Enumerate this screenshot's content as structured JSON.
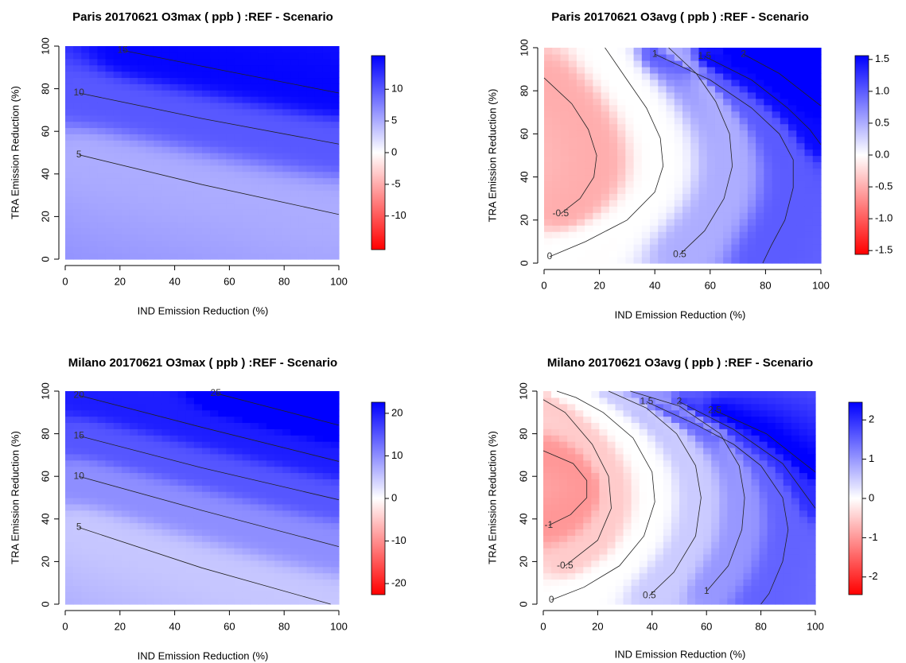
{
  "chart_data": [
    {
      "type": "contour",
      "title": "Paris 20170621 O3max ( ppb ) :REF - Scenario",
      "x_label": "IND Emission Reduction (%)",
      "y_label": "TRA Emission Reduction (%)",
      "xlim": [
        0,
        100
      ],
      "ylim": [
        0,
        100
      ],
      "xticks": [
        0,
        20,
        40,
        60,
        80,
        100
      ],
      "yticks": [
        0,
        20,
        40,
        60,
        80,
        100
      ],
      "zlim": [
        -15.3,
        15.3
      ],
      "zticks": [
        10,
        5,
        0,
        -5,
        -10
      ],
      "colorscale": [
        "#ff0000",
        "#ffffff",
        "#0000ff"
      ],
      "contours": [
        {
          "level": 15,
          "x": [
            21,
            60,
            100
          ],
          "y": [
            98,
            88,
            78
          ]
        },
        {
          "level": 10,
          "x": [
            5,
            50,
            100
          ],
          "y": [
            78,
            66,
            54
          ]
        },
        {
          "level": 5,
          "x": [
            5,
            50,
            100
          ],
          "y": [
            49,
            35,
            21
          ]
        }
      ]
    },
    {
      "type": "contour",
      "title": "Paris 20170621 O3avg ( ppb ) :REF - Scenario",
      "x_label": "IND Emission Reduction (%)",
      "y_label": "TRA Emission Reduction (%)",
      "xlim": [
        0,
        100
      ],
      "ylim": [
        0,
        100
      ],
      "xticks": [
        0,
        20,
        40,
        60,
        80,
        100
      ],
      "yticks": [
        0,
        20,
        40,
        60,
        80,
        100
      ],
      "zlim": [
        -1.56,
        1.56
      ],
      "zticks": [
        1.5,
        {
          "value": 1.0,
          "label": "1.0"
        },
        0.5,
        {
          "value": 0,
          "label": "0.0"
        },
        -0.5,
        {
          "value": -1.0,
          "label": "-1.0"
        },
        -1.5
      ],
      "colorscale": [
        "#ff0000",
        "#ffffff",
        "#0000ff"
      ],
      "contours": [
        {
          "level": -0.5,
          "x": [
            6,
            13,
            18,
            19,
            16,
            10,
            0
          ],
          "y": [
            23,
            30,
            40,
            50,
            62,
            74,
            86
          ]
        },
        {
          "level": 0,
          "x": [
            2,
            15,
            30,
            40,
            43,
            42,
            37,
            30,
            22
          ],
          "y": [
            3,
            10,
            20,
            33,
            45,
            58,
            72,
            85,
            100
          ]
        },
        {
          "level": 0.5,
          "x": [
            49,
            58,
            65,
            68,
            67,
            62,
            55,
            45
          ],
          "y": [
            4,
            15,
            30,
            45,
            60,
            75,
            88,
            100
          ]
        },
        {
          "level": 1,
          "x": [
            40,
            60,
            75,
            85,
            90,
            90,
            87,
            82,
            79
          ],
          "y": [
            97,
            85,
            72,
            60,
            48,
            35,
            20,
            8,
            0
          ]
        },
        {
          "level": 1.5,
          "x": [
            58,
            75,
            88,
            96,
            100
          ],
          "y": [
            96,
            85,
            72,
            62,
            55
          ]
        },
        {
          "level": 2,
          "x": [
            72,
            85,
            100
          ],
          "y": [
            97,
            88,
            73
          ]
        }
      ]
    },
    {
      "type": "contour",
      "title": "Milano 20170621 O3max ( ppb ) :REF - Scenario",
      "x_label": "IND Emission Reduction (%)",
      "y_label": "TRA Emission Reduction (%)",
      "xlim": [
        0,
        100
      ],
      "ylim": [
        0,
        100
      ],
      "xticks": [
        0,
        20,
        40,
        60,
        80,
        100
      ],
      "yticks": [
        0,
        20,
        40,
        60,
        80,
        100
      ],
      "zlim": [
        -22.6,
        22.6
      ],
      "zticks": [
        20,
        10,
        0,
        -10,
        -20
      ],
      "colorscale": [
        "#ff0000",
        "#ffffff",
        "#0000ff"
      ],
      "contours": [
        {
          "level": 25,
          "x": [
            55,
            100
          ],
          "y": [
            99,
            84
          ]
        },
        {
          "level": 20,
          "x": [
            5,
            50,
            100
          ],
          "y": [
            98,
            83,
            67
          ]
        },
        {
          "level": 15,
          "x": [
            5,
            50,
            100
          ],
          "y": [
            79,
            64,
            49
          ]
        },
        {
          "level": 10,
          "x": [
            5,
            50,
            100
          ],
          "y": [
            60,
            44,
            27
          ]
        },
        {
          "level": 5,
          "x": [
            5,
            50,
            97
          ],
          "y": [
            36,
            17,
            0
          ]
        }
      ]
    },
    {
      "type": "contour",
      "title": "Milano 20170621 O3avg ( ppb ) :REF - Scenario",
      "x_label": "IND Emission Reduction (%)",
      "y_label": "TRA Emission Reduction (%)",
      "xlim": [
        0,
        100
      ],
      "ylim": [
        0,
        100
      ],
      "xticks": [
        0,
        20,
        40,
        60,
        80,
        100
      ],
      "yticks": [
        0,
        20,
        40,
        60,
        80,
        100
      ],
      "zlim": [
        -2.45,
        2.45
      ],
      "zticks": [
        2,
        1,
        0,
        -1,
        -2
      ],
      "colorscale": [
        "#ff0000",
        "#ffffff",
        "#0000ff"
      ],
      "contours": [
        {
          "level": -1,
          "x": [
            2,
            10,
            16,
            16,
            11,
            0
          ],
          "y": [
            37,
            42,
            50,
            58,
            66,
            72
          ]
        },
        {
          "level": -0.5,
          "x": [
            8,
            20,
            25,
            24,
            18,
            8,
            0
          ],
          "y": [
            18,
            30,
            45,
            60,
            75,
            90,
            96
          ]
        },
        {
          "level": 0,
          "x": [
            3,
            15,
            28,
            37,
            41,
            40,
            33,
            22,
            12,
            5
          ],
          "y": [
            2,
            8,
            18,
            32,
            48,
            62,
            78,
            90,
            97,
            100
          ]
        },
        {
          "level": 0.5,
          "x": [
            39,
            48,
            56,
            58,
            56,
            49,
            38,
            24
          ],
          "y": [
            4,
            15,
            32,
            50,
            65,
            80,
            92,
            100
          ]
        },
        {
          "level": 1,
          "x": [
            60,
            68,
            73,
            74,
            72,
            65,
            50,
            32
          ],
          "y": [
            6,
            18,
            35,
            50,
            65,
            80,
            93,
            100
          ]
        },
        {
          "level": 1.5,
          "x": [
            38,
            55,
            70,
            80,
            88,
            90,
            88,
            83,
            80
          ],
          "y": [
            95,
            85,
            75,
            65,
            50,
            35,
            20,
            5,
            0
          ]
        },
        {
          "level": 2,
          "x": [
            50,
            70,
            88,
            100
          ],
          "y": [
            95,
            82,
            66,
            45
          ]
        },
        {
          "level": 2.5,
          "x": [
            63,
            82,
            100
          ],
          "y": [
            91,
            80,
            62
          ]
        }
      ]
    }
  ]
}
